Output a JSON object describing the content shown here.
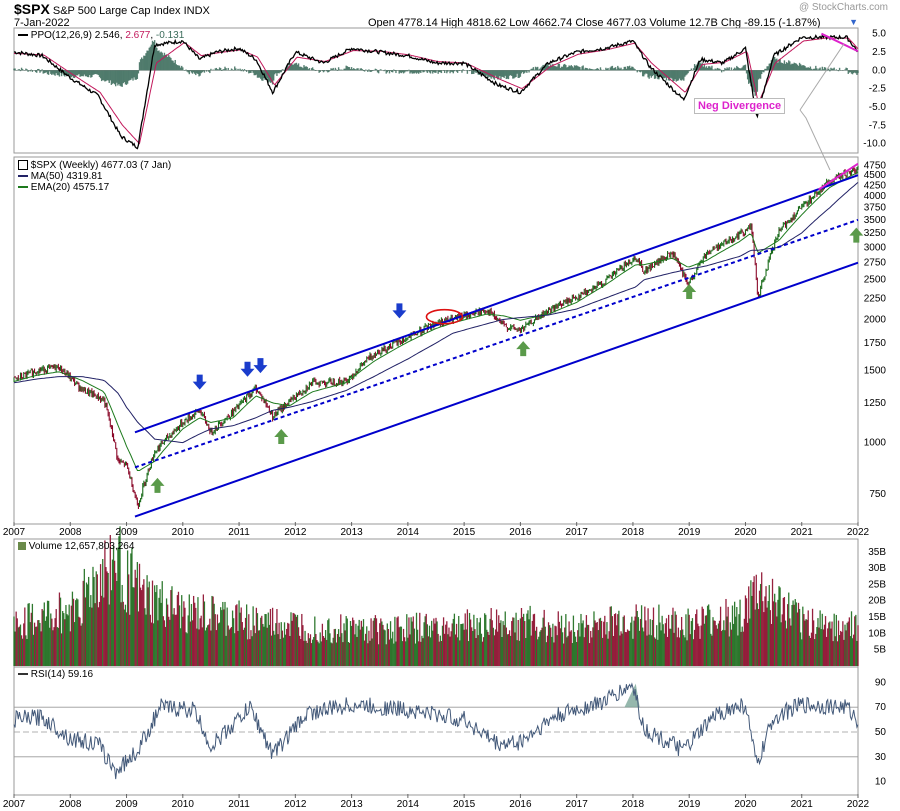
{
  "header": {
    "symbol": "$SPX",
    "name": "S&P 500 Large Cap Index",
    "exchange": "INDX",
    "date": "7-Jan-2022",
    "ohlc_text": "Open 4778.14  High 4818.62  Low 4662.74  Close 4677.03  Volume 12.7B  Chg -89.15 (-1.87%)",
    "watermark": "@ StockCharts.com"
  },
  "ppo_panel": {
    "legend_prefix": "PPO(12,26,9)",
    "ppo_value": "2.546",
    "signal_value": "2.677",
    "hist_value": "-0.131",
    "annotation": "Neg Divergence",
    "ticks": [
      "5.0",
      "2.5",
      "0.0",
      "-2.5",
      "-5.0",
      "-7.5",
      "-10.0"
    ]
  },
  "price_panel": {
    "legend_main": "$SPX (Weekly) 4677.03 (7 Jan)",
    "legend_ma": "MA(50) 4319.81",
    "legend_ema": "EMA(20) 4575.17",
    "ticks": [
      "4750",
      "4500",
      "4250",
      "4000",
      "3750",
      "3500",
      "3250",
      "3000",
      "2750",
      "2500",
      "2250",
      "2000",
      "1750",
      "1500",
      "1250",
      "1000",
      "750"
    ]
  },
  "volume_panel": {
    "legend": "Volume 12,657,803,264",
    "ticks": [
      "35B",
      "30B",
      "25B",
      "20B",
      "15B",
      "10B",
      "5B"
    ]
  },
  "rsi_panel": {
    "legend": "RSI(14) 59.16",
    "ticks": [
      "90",
      "70",
      "50",
      "30",
      "10"
    ]
  },
  "x_axis_years": [
    "2007",
    "2008",
    "2009",
    "2010",
    "2011",
    "2012",
    "2013",
    "2014",
    "2015",
    "2016",
    "2017",
    "2018",
    "2019",
    "2020",
    "2021",
    "2022"
  ],
  "colors": {
    "up": "#1a6b1a",
    "down": "#8b0a2a",
    "channel": "#0000cc",
    "ma": "#222266",
    "ema": "#1d7a1d",
    "signal_arrow_blue": "#1a3ccc",
    "signal_arrow_green": "#5a9a4a",
    "divergence": "#dd22cc",
    "ppo_hist": "#3a6b5a"
  },
  "chart_data": [
    {
      "type": "line",
      "title": "PPO(12,26,9)",
      "x": [
        2007.0,
        2007.5,
        2008.0,
        2008.5,
        2008.9,
        2009.2,
        2009.5,
        2010.0,
        2010.3,
        2010.6,
        2011.0,
        2011.3,
        2011.6,
        2012.0,
        2012.5,
        2013.0,
        2013.5,
        2014.0,
        2014.5,
        2015.0,
        2015.6,
        2016.0,
        2016.5,
        2017.0,
        2017.5,
        2018.0,
        2018.3,
        2018.9,
        2019.2,
        2019.6,
        2020.0,
        2020.2,
        2020.5,
        2021.0,
        2021.4,
        2021.8,
        2022.0
      ],
      "series": [
        {
          "name": "PPO",
          "values": [
            2.5,
            2.0,
            -1.0,
            -3.5,
            -9.0,
            -10.5,
            3.5,
            4.0,
            1.5,
            2.5,
            3.0,
            1.5,
            -3.0,
            2.5,
            1.0,
            3.0,
            2.5,
            2.0,
            1.0,
            1.0,
            -2.0,
            -3.0,
            1.0,
            2.5,
            3.0,
            4.0,
            0.5,
            -4.0,
            1.5,
            1.0,
            3.0,
            -6.5,
            2.0,
            4.5,
            4.5,
            4.5,
            2.55
          ]
        },
        {
          "name": "Signal",
          "values": [
            2.3,
            2.1,
            -0.5,
            -3.0,
            -7.5,
            -10.0,
            1.0,
            3.8,
            2.0,
            2.4,
            2.8,
            1.8,
            -2.0,
            1.8,
            1.2,
            2.7,
            2.6,
            2.1,
            1.2,
            1.0,
            -1.2,
            -2.5,
            0.5,
            2.2,
            2.8,
            3.7,
            1.0,
            -3.0,
            0.8,
            1.1,
            2.6,
            -4.5,
            1.0,
            4.0,
            4.4,
            4.4,
            2.68
          ]
        }
      ],
      "ylim": [
        -11,
        5.5
      ]
    },
    {
      "type": "line",
      "title": "$SPX (Weekly) 4677.03 (7 Jan)",
      "x": [
        2007.0,
        2007.4,
        2007.8,
        2008.2,
        2008.6,
        2008.85,
        2009.0,
        2009.2,
        2009.5,
        2010.0,
        2010.3,
        2010.5,
        2010.9,
        2011.3,
        2011.6,
        2011.9,
        2012.3,
        2012.9,
        2013.4,
        2014.0,
        2014.5,
        2014.8,
        2015.4,
        2015.7,
        2016.0,
        2016.5,
        2017.0,
        2017.5,
        2018.05,
        2018.2,
        2018.7,
        2018.98,
        2019.3,
        2019.9,
        2020.1,
        2020.22,
        2020.6,
        2021.0,
        2021.5,
        2022.0
      ],
      "series": [
        {
          "name": "$SPX",
          "values": [
            1420,
            1500,
            1530,
            1350,
            1270,
            900,
            880,
            700,
            950,
            1120,
            1200,
            1060,
            1190,
            1360,
            1160,
            1260,
            1400,
            1410,
            1650,
            1800,
            1960,
            2000,
            2110,
            1930,
            1880,
            2100,
            2270,
            2470,
            2840,
            2620,
            2900,
            2420,
            2900,
            3230,
            3380,
            2240,
            3280,
            3750,
            4350,
            4677
          ]
        },
        {
          "name": "MA(50)",
          "values": [
            1400,
            1430,
            1450,
            1450,
            1420,
            1320,
            1220,
            1120,
            1020,
            1000,
            1050,
            1080,
            1100,
            1150,
            1200,
            1220,
            1260,
            1340,
            1450,
            1600,
            1750,
            1850,
            1950,
            2000,
            2020,
            2050,
            2120,
            2250,
            2400,
            2500,
            2600,
            2650,
            2700,
            2850,
            2950,
            2950,
            3000,
            3250,
            3750,
            4320
          ]
        },
        {
          "name": "EMA(20)",
          "values": [
            1410,
            1460,
            1490,
            1420,
            1330,
            1100,
            980,
            850,
            900,
            1080,
            1150,
            1120,
            1150,
            1300,
            1250,
            1230,
            1330,
            1400,
            1580,
            1760,
            1900,
            1960,
            2060,
            2040,
            1990,
            2060,
            2200,
            2420,
            2720,
            2720,
            2820,
            2680,
            2780,
            3100,
            3250,
            2900,
            3120,
            3600,
            4200,
            4575
          ]
        }
      ],
      "ylim": [
        640,
        4900
      ],
      "scale": "log"
    },
    {
      "type": "bar",
      "title": "Volume 12,657,803,264",
      "x": [
        2007.0,
        2008.0,
        2008.8,
        2009.3,
        2010.0,
        2011.0,
        2012.0,
        2013.0,
        2014.0,
        2015.0,
        2016.0,
        2017.0,
        2018.0,
        2019.0,
        2020.0,
        2020.2,
        2021.0,
        2022.0
      ],
      "values": [
        13,
        18,
        34,
        22,
        17,
        15,
        13,
        12,
        12,
        13,
        14,
        12,
        15,
        13,
        17,
        24,
        14,
        12.66
      ],
      "ylabel": "",
      "ylim": [
        0,
        38
      ]
    },
    {
      "type": "line",
      "title": "RSI(14)",
      "x": [
        2007.0,
        2007.5,
        2008.0,
        2008.5,
        2008.8,
        2009.2,
        2009.6,
        2010.2,
        2010.5,
        2011.2,
        2011.6,
        2012.2,
        2013.0,
        2014.0,
        2015.0,
        2015.6,
        2016.0,
        2016.6,
        2017.5,
        2018.0,
        2018.2,
        2018.9,
        2019.5,
        2020.0,
        2020.2,
        2020.5,
        2021.0,
        2021.8,
        2022.0
      ],
      "series": [
        {
          "name": "RSI(14)",
          "values": [
            60,
            62,
            45,
            40,
            18,
            35,
            70,
            68,
            38,
            70,
            32,
            65,
            72,
            68,
            60,
            40,
            42,
            62,
            75,
            88,
            52,
            35,
            65,
            72,
            22,
            62,
            72,
            70,
            59.16
          ]
        }
      ],
      "ylim": [
        0,
        100
      ]
    }
  ]
}
